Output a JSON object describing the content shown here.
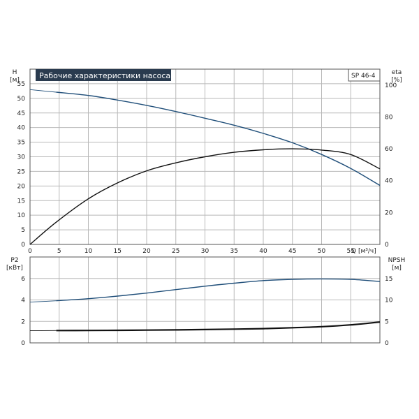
{
  "title": "Рабочие характеристики насоса",
  "model": "SP 46-4",
  "colors": {
    "blue": "#1f4e79",
    "black": "#111111",
    "grid": "#b8b8b8",
    "title_bg": "#2a3b4f"
  },
  "chart_data": [
    {
      "type": "line",
      "name": "upper",
      "x_ticks": [
        "0",
        "5",
        "10",
        "15",
        "20",
        "25",
        "30",
        "35",
        "40",
        "45",
        "50",
        "55"
      ],
      "xlabel": "Q [м³/ч]",
      "xlim": [
        0,
        60
      ],
      "left_axis": {
        "label_line1": "H",
        "label_line2": "[м]",
        "ticks": [
          "0",
          "5",
          "10",
          "15",
          "20",
          "25",
          "30",
          "35",
          "40",
          "45",
          "50",
          "55"
        ],
        "ylim": [
          0,
          60
        ]
      },
      "right_axis": {
        "label_line1": "eta",
        "label_line2": "[%]",
        "ticks": [
          "0",
          "20",
          "40",
          "60",
          "80",
          "100"
        ],
        "ylim": [
          0,
          110
        ]
      },
      "grid": true,
      "series": [
        {
          "axis": "left",
          "color": "#1f4e79",
          "dashed_start": true,
          "points": [
            [
              0,
              53
            ],
            [
              4.5,
              52.1
            ],
            [
              10,
              51
            ],
            [
              15,
              49.4
            ],
            [
              20,
              47.6
            ],
            [
              25,
              45.5
            ],
            [
              30,
              43.2
            ],
            [
              35,
              40.8
            ],
            [
              40,
              38
            ],
            [
              45,
              34.8
            ],
            [
              50,
              30.8
            ],
            [
              55,
              26
            ],
            [
              60,
              20.2
            ]
          ]
        },
        {
          "axis": "right",
          "color": "#111111",
          "points": [
            [
              0,
              0
            ],
            [
              4.5,
              14
            ],
            [
              10,
              28.6
            ],
            [
              15,
              38.6
            ],
            [
              20,
              46.2
            ],
            [
              25,
              51.2
            ],
            [
              30,
              55
            ],
            [
              35,
              57.8
            ],
            [
              40,
              59.4
            ],
            [
              45,
              60
            ],
            [
              50,
              59.2
            ],
            [
              55,
              56.4
            ],
            [
              60,
              47.4
            ]
          ]
        }
      ]
    },
    {
      "type": "line",
      "name": "lower",
      "x_ticks": [],
      "xlim": [
        0,
        60
      ],
      "left_axis": {
        "label_line1": "P2",
        "label_line2": "[кВт]",
        "ticks": [
          "0",
          "2",
          "4",
          "6"
        ],
        "ylim": [
          0,
          8
        ]
      },
      "right_axis": {
        "label_line1": "NPSH",
        "label_line2": "[м]",
        "ticks": [
          "0",
          "5",
          "10",
          "15"
        ],
        "ylim": [
          0,
          20
        ]
      },
      "grid": true,
      "series": [
        {
          "axis": "right",
          "color": "#1f4e79",
          "dashed_start": true,
          "points": [
            [
              0,
              9.5
            ],
            [
              4.5,
              9.8
            ],
            [
              10,
              10.3
            ],
            [
              15,
              10.9
            ],
            [
              20,
              11.6
            ],
            [
              25,
              12.4
            ],
            [
              30,
              13.2
            ],
            [
              35,
              13.9
            ],
            [
              40,
              14.5
            ],
            [
              45,
              14.8
            ],
            [
              50,
              14.9
            ],
            [
              55,
              14.8
            ],
            [
              60,
              14.3
            ]
          ]
        },
        {
          "axis": "left",
          "color": "#111111",
          "thick": true,
          "dashed_start": true,
          "points": [
            [
              0,
              1.13
            ],
            [
              4.5,
              1.15
            ],
            [
              10,
              1.16
            ],
            [
              15,
              1.17
            ],
            [
              20,
              1.19
            ],
            [
              25,
              1.21
            ],
            [
              30,
              1.24
            ],
            [
              35,
              1.28
            ],
            [
              40,
              1.33
            ],
            [
              45,
              1.41
            ],
            [
              50,
              1.51
            ],
            [
              55,
              1.68
            ],
            [
              60,
              1.94
            ]
          ]
        }
      ]
    }
  ]
}
